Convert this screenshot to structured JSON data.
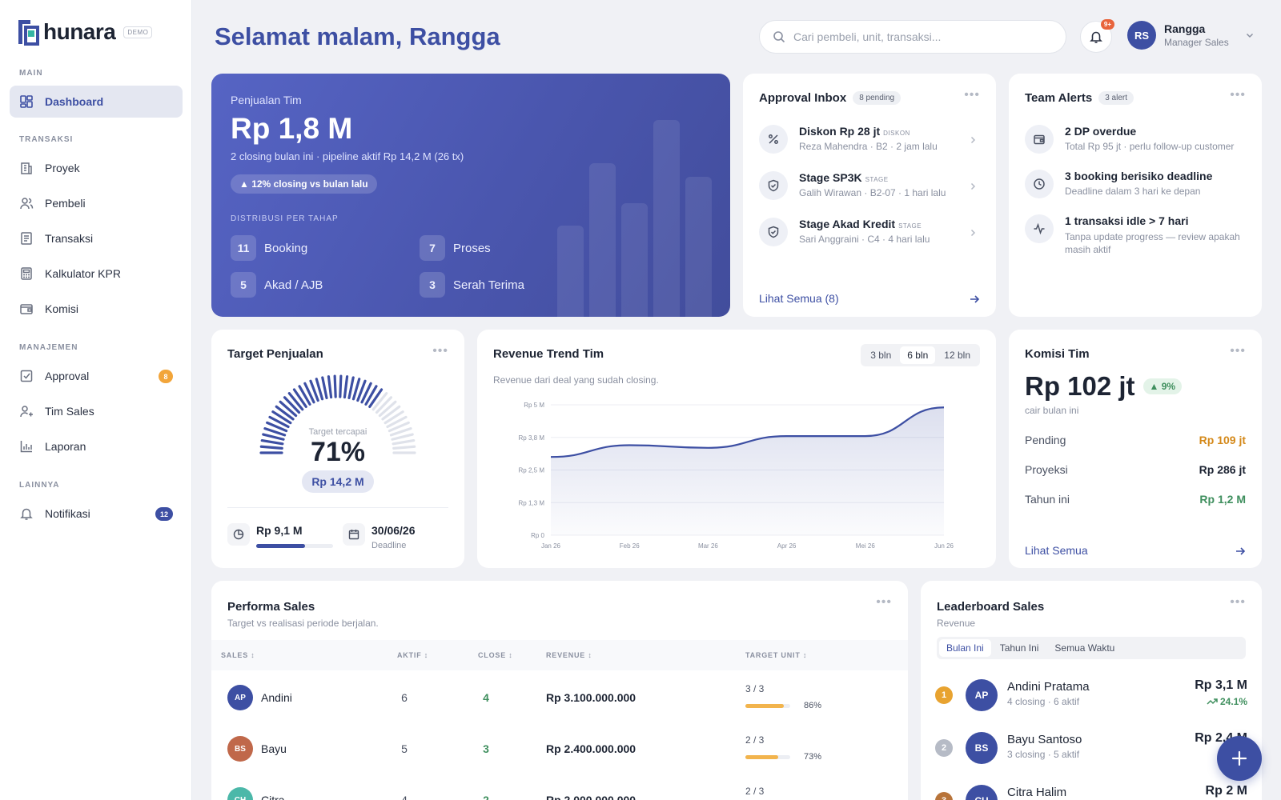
{
  "app": {
    "logo_text": "hunara",
    "demo_label": "DEMO"
  },
  "sidebar": {
    "sections": [
      {
        "label": "MAIN"
      },
      {
        "label": "TRANSAKSI"
      },
      {
        "label": "MANAJEMEN"
      },
      {
        "label": "LAINNYA"
      }
    ],
    "items": [
      {
        "label": "Dashboard",
        "icon": "dashboard-icon",
        "active": true
      },
      {
        "label": "Proyek",
        "icon": "building-icon"
      },
      {
        "label": "Pembeli",
        "icon": "users-icon"
      },
      {
        "label": "Transaksi",
        "icon": "receipt-icon"
      },
      {
        "label": "Kalkulator KPR",
        "icon": "calculator-icon"
      },
      {
        "label": "Komisi",
        "icon": "wallet-icon"
      },
      {
        "label": "Approval",
        "icon": "check-square-icon",
        "badge": "8",
        "badge_color": "#f2a53a"
      },
      {
        "label": "Tim Sales",
        "icon": "user-group-icon"
      },
      {
        "label": "Laporan",
        "icon": "bar-chart-icon"
      },
      {
        "label": "Notifikasi",
        "icon": "bell-icon",
        "badge": "12",
        "badge_color": "#3d4fa3"
      }
    ]
  },
  "header": {
    "greeting": "Selamat malam, Rangga",
    "search_placeholder": "Cari pembeli, unit, transaksi...",
    "notif_badge": "9+",
    "user": {
      "initials": "RS",
      "name": "Rangga",
      "role": "Manager Sales"
    }
  },
  "hero": {
    "label": "Penjualan Tim",
    "value": "Rp 1,8 M",
    "subtitle": "2 closing bulan ini · pipeline aktif Rp 14,2 M (26 tx)",
    "trend": "▲ 12% closing vs bulan lalu",
    "distribution_label": "DISTRIBUSI PER TAHAP",
    "stages": [
      {
        "count": "11",
        "label": "Booking"
      },
      {
        "count": "7",
        "label": "Proses"
      },
      {
        "count": "5",
        "label": "Akad / AJB"
      },
      {
        "count": "3",
        "label": "Serah Terima"
      }
    ]
  },
  "approval": {
    "title": "Approval Inbox",
    "pending": "8 pending",
    "items": [
      {
        "title": "Diskon Rp 28 jt",
        "tag": "DISKON",
        "sub": "Reza Mahendra · B2 · 2 jam lalu",
        "icon": "percent-icon"
      },
      {
        "title": "Stage SP3K",
        "tag": "STAGE",
        "sub": "Galih Wirawan · B2-07 · 1 hari lalu",
        "icon": "shield-icon"
      },
      {
        "title": "Stage Akad Kredit",
        "tag": "STAGE",
        "sub": "Sari Anggraini · C4 · 4 hari lalu",
        "icon": "shield-icon"
      }
    ],
    "link": "Lihat Semua (8)"
  },
  "alerts": {
    "title": "Team Alerts",
    "count": "3 alert",
    "items": [
      {
        "title": "2 DP overdue",
        "sub": "Total Rp 95 jt · perlu follow-up customer",
        "icon": "wallet-icon"
      },
      {
        "title": "3 booking berisiko deadline",
        "sub": "Deadline dalam 3 hari ke depan",
        "icon": "clock-icon"
      },
      {
        "title": "1 transaksi idle > 7 hari",
        "sub": "Tanpa update progress — review apakah masih aktif",
        "icon": "activity-icon"
      }
    ]
  },
  "target": {
    "title": "Target Penjualan",
    "gauge_label": "Target tercapai",
    "percent": "71%",
    "progress": 0.71,
    "target_value": "Rp 14,2 M",
    "achieved": "Rp 9,1 M",
    "achieved_progress": 0.64,
    "deadline": "30/06/26",
    "deadline_label": "Deadline"
  },
  "revenue": {
    "title": "Revenue Trend Tim",
    "subtitle": "Revenue dari deal yang sudah closing.",
    "ranges": [
      "3 bln",
      "6 bln",
      "12 bln"
    ],
    "active_range": "6 bln"
  },
  "chart_data": {
    "type": "area",
    "title": "Revenue Trend Tim",
    "x": [
      "Jan 26",
      "Feb 26",
      "Mar 26",
      "Apr 26",
      "Mei 26",
      "Jun 26"
    ],
    "y_ticks": [
      "Rp 0",
      "Rp 1,3 M",
      "Rp 2,5 M",
      "Rp 3,8 M",
      "Rp 5 M"
    ],
    "y_tick_values": [
      0,
      1.25,
      2.5,
      3.75,
      5
    ],
    "series": [
      {
        "values": [
          3.0,
          3.45,
          3.35,
          3.8,
          3.8,
          4.9
        ]
      }
    ],
    "ylim": [
      0,
      5
    ],
    "grid": true,
    "color": "#3d4fa3"
  },
  "komisi": {
    "title": "Komisi Tim",
    "value": "Rp 102 jt",
    "trend": "▲ 9%",
    "sub": "cair bulan ini",
    "rows": [
      {
        "label": "Pending",
        "value": "Rp 109 jt",
        "color": "#d4891a"
      },
      {
        "label": "Proyeksi",
        "value": "Rp 286 jt",
        "color": "#1d2433"
      },
      {
        "label": "Tahun ini",
        "value": "Rp 1,2 M",
        "color": "#3f8f5e"
      }
    ],
    "link": "Lihat Semua"
  },
  "performa": {
    "title": "Performa Sales",
    "subtitle": "Target vs realisasi periode berjalan.",
    "columns": [
      "SALES ↕",
      "AKTIF ↕",
      "CLOSE ↕",
      "REVENUE ↕",
      "TARGET UNIT ↕"
    ],
    "rows": [
      {
        "initials": "AP",
        "name": "Andini",
        "aktif": "6",
        "close": "4",
        "revenue": "Rp 3.100.000.000",
        "target": "3 / 3",
        "pct": "86%",
        "progress": 0.86,
        "color": "#3d4fa3"
      },
      {
        "initials": "BS",
        "name": "Bayu",
        "aktif": "5",
        "close": "3",
        "revenue": "Rp 2.400.000.000",
        "target": "2 / 3",
        "pct": "73%",
        "progress": 0.73,
        "color": "#c0684a"
      },
      {
        "initials": "CH",
        "name": "Citra",
        "aktif": "4",
        "close": "2",
        "revenue": "Rp 2.000.000.000",
        "target": "2 / 3",
        "pct": "",
        "progress": 0.6,
        "color": "#4bb8a9"
      }
    ]
  },
  "leaderboard": {
    "title": "Leaderboard Sales",
    "subtitle": "Revenue",
    "tabs": [
      "Bulan Ini",
      "Tahun Ini",
      "Semua Waktu"
    ],
    "rows": [
      {
        "rank": "1",
        "rank_color": "#e8a330",
        "initials": "AP",
        "name": "Andini Pratama",
        "sub": "4 closing · 6 aktif",
        "value": "Rp 3,1 M",
        "trend": "24.1%"
      },
      {
        "rank": "2",
        "rank_color": "#b6bbc6",
        "initials": "BS",
        "name": "Bayu Santoso",
        "sub": "3 closing · 5 aktif",
        "value": "Rp 2,4 M",
        "trend": ""
      },
      {
        "rank": "3",
        "rank_color": "#b8743a",
        "initials": "CH",
        "name": "Citra Halim",
        "sub": "",
        "value": "Rp 2 M",
        "trend": ""
      }
    ]
  }
}
